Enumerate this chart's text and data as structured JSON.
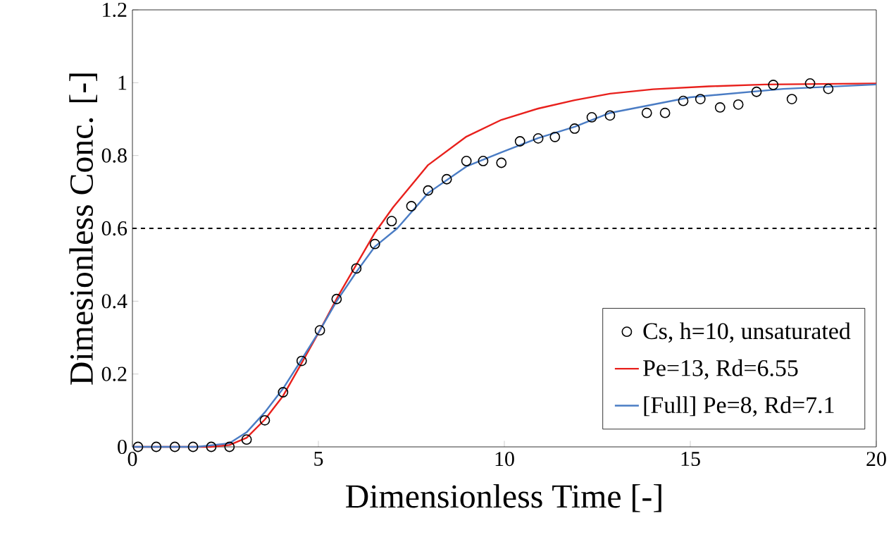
{
  "chart_data": {
    "type": "line",
    "xlabel": "Dimensionless Time [-]",
    "ylabel": "Dimesionless Conc. [-]",
    "xlim": [
      0,
      20
    ],
    "xticks": [
      0,
      5,
      10,
      15,
      20
    ],
    "ylim": [
      0,
      1.2
    ],
    "yticks": [
      0,
      0.2,
      0.4,
      0.6,
      0.8,
      1,
      1.2
    ],
    "legend": "bottom right",
    "ref_lines": [
      {
        "axis": "y",
        "value": 0.6,
        "color": "#000000",
        "line_style": "dashed"
      }
    ],
    "series": [
      {
        "name": "Cs, h=10, unsaturated",
        "type": "scatter",
        "marker": "circle",
        "color": "#000000",
        "x": [
          0.15,
          0.64,
          1.14,
          1.63,
          2.12,
          2.61,
          3.07,
          3.56,
          4.05,
          4.55,
          5.04,
          5.49,
          6.02,
          6.52,
          6.97,
          7.5,
          7.95,
          8.45,
          8.98,
          9.43,
          9.92,
          10.42,
          10.91,
          11.36,
          11.89,
          12.35,
          12.84,
          13.83,
          14.32,
          14.81,
          15.27,
          15.8,
          16.29,
          16.78,
          17.23,
          17.73,
          18.22,
          18.71
        ],
        "values": [
          0,
          0,
          0,
          0,
          0,
          0,
          0.02,
          0.073,
          0.15,
          0.236,
          0.32,
          0.406,
          0.49,
          0.557,
          0.62,
          0.661,
          0.704,
          0.735,
          0.785,
          0.785,
          0.78,
          0.839,
          0.847,
          0.851,
          0.874,
          0.905,
          0.91,
          0.917,
          0.917,
          0.95,
          0.955,
          0.932,
          0.94,
          0.975,
          0.994,
          0.955,
          0.998,
          0.983
        ]
      },
      {
        "name": "Pe=13, Rd=6.55",
        "line_style": "solid",
        "marker": "none",
        "color": "#e8201c",
        "x": [
          0,
          2.1,
          2.61,
          3.07,
          3.56,
          4.05,
          4.55,
          5.04,
          5.53,
          6.52,
          7.01,
          7.95,
          8.98,
          9.92,
          10.91,
          11.89,
          12.84,
          14,
          15.5,
          17,
          20
        ],
        "values": [
          0,
          0,
          0.005,
          0.025,
          0.075,
          0.14,
          0.23,
          0.32,
          0.414,
          0.588,
          0.658,
          0.774,
          0.852,
          0.898,
          0.929,
          0.952,
          0.97,
          0.982,
          0.99,
          0.995,
          0.998
        ]
      },
      {
        "name": "[Full] Pe=8, Rd=7.1",
        "line_style": "solid",
        "marker": "none",
        "color": "#4a7cc4",
        "x": [
          0,
          1.74,
          2.61,
          3.07,
          3.56,
          4.05,
          4.55,
          5.04,
          5.49,
          6.02,
          6.52,
          7.12,
          7.95,
          8.98,
          9.92,
          10.91,
          11.89,
          12.84,
          15,
          17.5,
          20
        ],
        "values": [
          0,
          0,
          0.01,
          0.04,
          0.095,
          0.16,
          0.24,
          0.32,
          0.4,
          0.48,
          0.55,
          0.6,
          0.697,
          0.77,
          0.809,
          0.848,
          0.879,
          0.917,
          0.96,
          0.983,
          0.995
        ]
      }
    ]
  }
}
